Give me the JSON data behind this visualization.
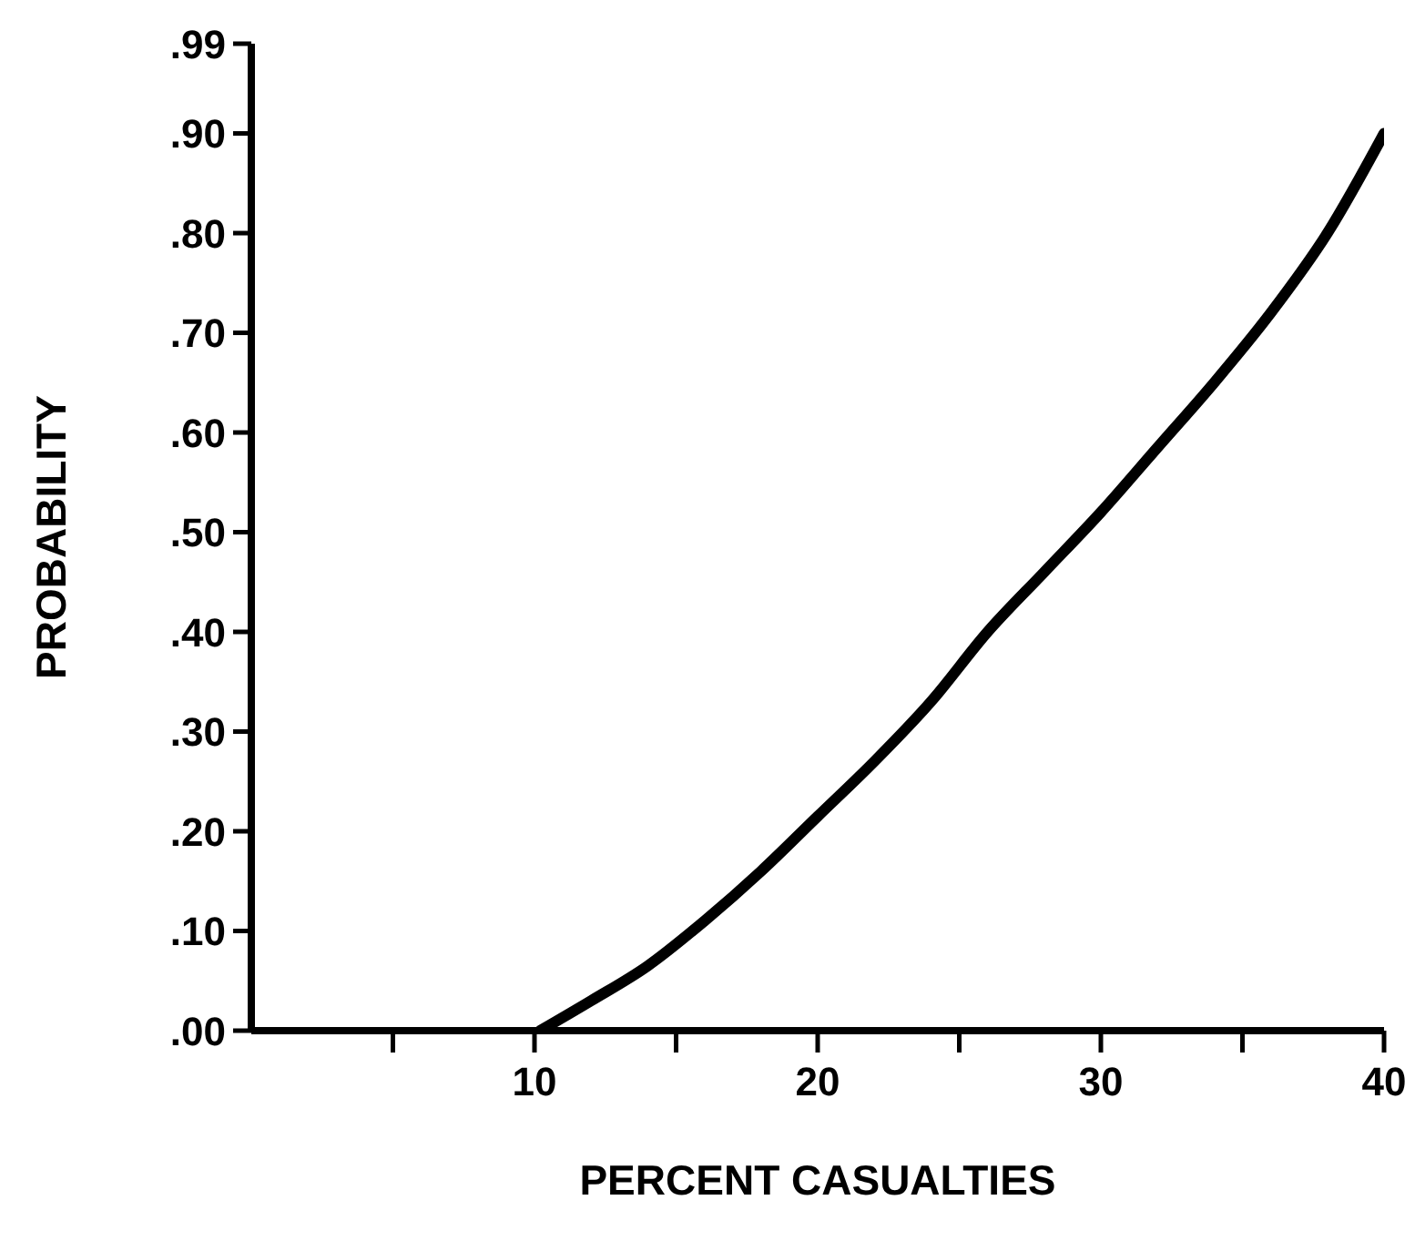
{
  "chart_data": {
    "type": "line",
    "xlabel": "PERCENT    CASUALTIES",
    "ylabel": "PROBABILITY",
    "x": [
      10.2,
      12,
      14,
      16,
      18,
      20,
      22,
      24,
      26,
      28,
      30,
      32,
      34,
      36,
      38,
      40
    ],
    "series": [
      {
        "color": "#000000",
        "values": [
          0,
          0.03,
          0.065,
          0.11,
          0.16,
          0.215,
          0.27,
          0.33,
          0.4,
          0.46,
          0.52,
          0.585,
          0.65,
          0.72,
          0.8,
          0.9
        ]
      }
    ],
    "xlim": [
      0,
      40
    ],
    "xticks": [
      {
        "value": 5,
        "label": null
      },
      10,
      {
        "value": 15,
        "label": null
      },
      20,
      {
        "value": 25,
        "label": null
      },
      30,
      {
        "value": 35,
        "label": null
      },
      40
    ],
    "ylim": [
      0,
      0.99
    ],
    "yticks": [
      {
        "value": 0,
        "label": ".00"
      },
      {
        "value": 0.1,
        "label": ".10"
      },
      {
        "value": 0.2,
        "label": ".20"
      },
      {
        "value": 0.3,
        "label": ".30"
      },
      {
        "value": 0.4,
        "label": ".40"
      },
      {
        "value": 0.5,
        "label": ".50"
      },
      {
        "value": 0.6,
        "label": ".60"
      },
      {
        "value": 0.7,
        "label": ".70"
      },
      {
        "value": 0.8,
        "label": ".80"
      },
      {
        "value": 0.9,
        "label": ".90"
      },
      {
        "value": 0.99,
        "label": ".99"
      }
    ],
    "grid": false,
    "legend": false,
    "marker": "none",
    "line_style": "solid"
  }
}
